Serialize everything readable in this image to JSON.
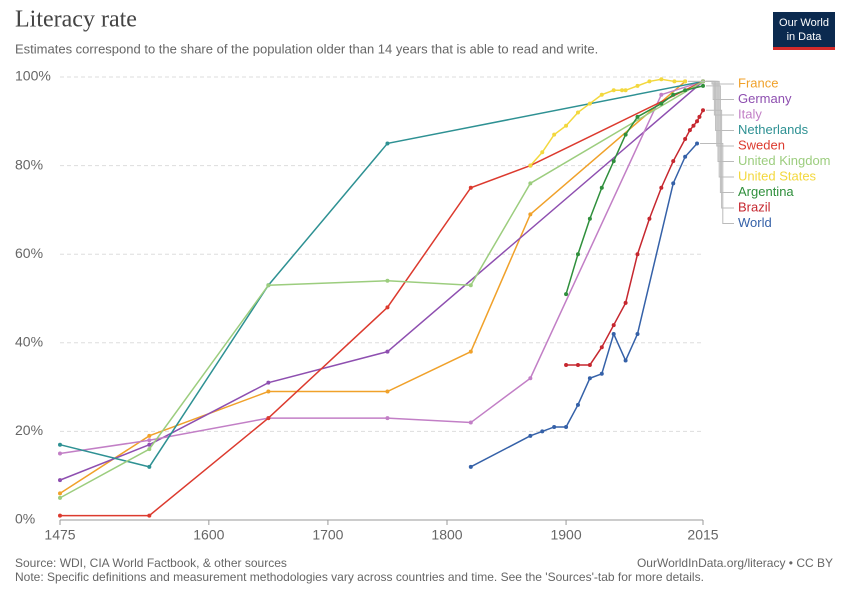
{
  "chart_data": {
    "type": "line",
    "title": "Literacy rate",
    "subtitle": "Estimates correspond to the share of the population older than 14 years that is able to read and write.",
    "logo": [
      "Our World",
      "in Data"
    ],
    "source": "Source: WDI, CIA World Factbook, & other sources",
    "url": "OurWorldInData.org/literacy • CC BY",
    "note": "Note: Specific definitions and measurement methodologies vary across countries and time. See the 'Sources'-tab for more details.",
    "xlim": [
      1475,
      2015
    ],
    "ylim": [
      0,
      100
    ],
    "xticks": [
      1475,
      1600,
      1700,
      1800,
      1900,
      2015
    ],
    "yticks": [
      {
        "value": 0,
        "label": "0%"
      },
      {
        "value": 20,
        "label": "20%"
      },
      {
        "value": 40,
        "label": "40%"
      },
      {
        "value": 60,
        "label": "60%"
      },
      {
        "value": 80,
        "label": "80%"
      },
      {
        "value": 100,
        "label": "100%"
      }
    ],
    "grid": true,
    "series": [
      {
        "name": "France",
        "color": "#f0a12a",
        "x": [
          1475,
          1550,
          1650,
          1750,
          1820,
          1870,
          2000
        ],
        "values": [
          6,
          19,
          29,
          29,
          38,
          69,
          99
        ]
      },
      {
        "name": "Germany",
        "color": "#8e4fb0",
        "x": [
          1475,
          1550,
          1650,
          1750,
          2015
        ],
        "values": [
          9,
          17,
          31,
          38,
          99
        ]
      },
      {
        "name": "Italy",
        "color": "#c27fc6",
        "x": [
          1475,
          1550,
          1650,
          1750,
          1820,
          1870,
          1980,
          2015
        ],
        "values": [
          15,
          18,
          23,
          23,
          22,
          32,
          96,
          99
        ]
      },
      {
        "name": "Netherlands",
        "color": "#2e9193",
        "x": [
          1475,
          1550,
          1650,
          1750,
          2015
        ],
        "values": [
          17,
          12,
          53,
          85,
          99
        ]
      },
      {
        "name": "Sweden",
        "color": "#dc3a2e",
        "x": [
          1475,
          1550,
          1650,
          1750,
          1820,
          1870,
          2015
        ],
        "values": [
          1,
          1,
          23,
          48,
          75,
          80,
          99
        ]
      },
      {
        "name": "United Kingdom",
        "color": "#9ccd7e",
        "x": [
          1475,
          1550,
          1650,
          1750,
          1820,
          1870,
          2015
        ],
        "values": [
          5,
          16,
          53,
          54,
          53,
          76,
          99
        ]
      },
      {
        "name": "United States",
        "color": "#f3d83e",
        "x": [
          1870,
          1880,
          1890,
          1900,
          1910,
          1920,
          1930,
          1940,
          1947,
          1950,
          1960,
          1970,
          1980,
          1991,
          2000
        ],
        "values": [
          80,
          83,
          87,
          89,
          92,
          94,
          96,
          97,
          97,
          97,
          98,
          99,
          99.5,
          99,
          99
        ]
      },
      {
        "name": "Argentina",
        "color": "#2f8f3c",
        "x": [
          1900,
          1910,
          1920,
          1930,
          1940,
          1950,
          1960,
          1980,
          1990,
          2000,
          2015
        ],
        "values": [
          51,
          60,
          68,
          75,
          81,
          87,
          91,
          94,
          96,
          97,
          98
        ]
      },
      {
        "name": "Brazil",
        "color": "#c6272f",
        "x": [
          1900,
          1910,
          1920,
          1930,
          1940,
          1950,
          1960,
          1970,
          1980,
          1990,
          2000,
          2004,
          2007,
          2010,
          2012,
          2015
        ],
        "values": [
          35,
          35,
          35,
          39,
          44,
          49,
          60,
          68,
          75,
          81,
          86,
          88,
          89,
          90,
          91,
          92.5
        ]
      },
      {
        "name": "World",
        "color": "#3561a8",
        "x": [
          1820,
          1870,
          1880,
          1890,
          1900,
          1910,
          1920,
          1930,
          1940,
          1950,
          1960,
          1990,
          2000,
          2010
        ],
        "values": [
          12,
          19,
          20,
          21,
          21,
          26,
          32,
          33,
          42,
          36,
          42,
          76,
          82,
          85
        ]
      }
    ]
  }
}
